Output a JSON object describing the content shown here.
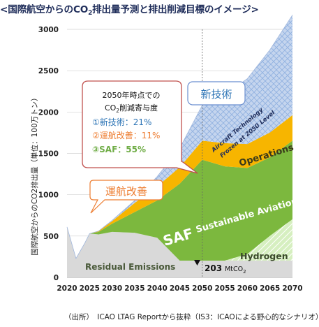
{
  "title": {
    "pre": "<国際航空からのCO",
    "sub": "2",
    "post": "排出量予測と排出削減目標のイメージ>"
  },
  "source": "（出所）　ICAO LTAG Reportから抜粋（IS3：ICAOによる野心的なシナリオ）",
  "callout": {
    "line1": "2050年時点での",
    "line2_pre": "CO",
    "line2_sub": "2",
    "line2_post": "削減寄与度",
    "item1": "①新技術：21%",
    "item2": "②運航改善：11%",
    "item3": "③SAF：55%"
  },
  "labels": {
    "shingijutsu": "新技術",
    "unkou": "運航改善",
    "aircraft_tech_1": "Aircraft Technology",
    "aircraft_tech_2": "Frozen at 2050 Level",
    "operations": "Operations",
    "saf_big": "SAF",
    "saf_full": "Sustainable Aviation Fuel",
    "hydrogen": "Hydrogen",
    "residual": "Residual Emissions",
    "marker_value": "203",
    "marker_unit": "MtCO",
    "marker_sub": "2"
  },
  "colors": {
    "residual": "#d9d9d9",
    "hydrogen": "#c8e6a8",
    "saf": "#7cb83e",
    "operations": "#f7b500",
    "aircraft": "#b4c7e7",
    "tech_text": "#2e75b6",
    "ops_text": "#ed7d31",
    "saf_text": "#70ad47",
    "navy": "#1f2d5a"
  },
  "chart_data": {
    "type": "area",
    "x": [
      2020,
      2022,
      2024,
      2025,
      2027,
      2030,
      2035,
      2040,
      2045,
      2050,
      2055,
      2060,
      2065,
      2070
    ],
    "ylabel": "国際航空からのCO2排出量（単位：100万トン）",
    "ylim": [
      0,
      3000
    ],
    "yticks": [
      0,
      500,
      1000,
      1500,
      2000,
      2500,
      3000
    ],
    "xticks": [
      2020,
      2025,
      2030,
      2035,
      2040,
      2045,
      2050,
      2055,
      2060,
      2065,
      2070
    ],
    "grid": true,
    "reference_line_x": 2050,
    "series": [
      {
        "name": "Residual Emissions",
        "values": [
          610,
          230,
          420,
          530,
          520,
          550,
          540,
          480,
          203,
          203,
          203,
          203,
          203,
          203
        ]
      },
      {
        "name": "Hydrogen",
        "values": [
          0,
          0,
          0,
          0,
          0,
          0,
          0,
          0,
          0,
          0,
          0,
          80,
          300,
          500
        ]
      },
      {
        "name": "SAF",
        "values": [
          0,
          0,
          0,
          0,
          30,
          100,
          250,
          450,
          930,
          1220,
          1140,
          1040,
          950,
          950
        ]
      },
      {
        "name": "Operations",
        "values": [
          0,
          0,
          0,
          0,
          10,
          30,
          110,
          170,
          200,
          230,
          280,
          290,
          300,
          310
        ]
      },
      {
        "name": "Aircraft Technology Frozen at 2050 Level",
        "values": [
          0,
          0,
          0,
          0,
          0,
          10,
          30,
          120,
          230,
          430,
          590,
          790,
          1000,
          1210
        ]
      }
    ],
    "annotation": "203 MtCO2"
  }
}
